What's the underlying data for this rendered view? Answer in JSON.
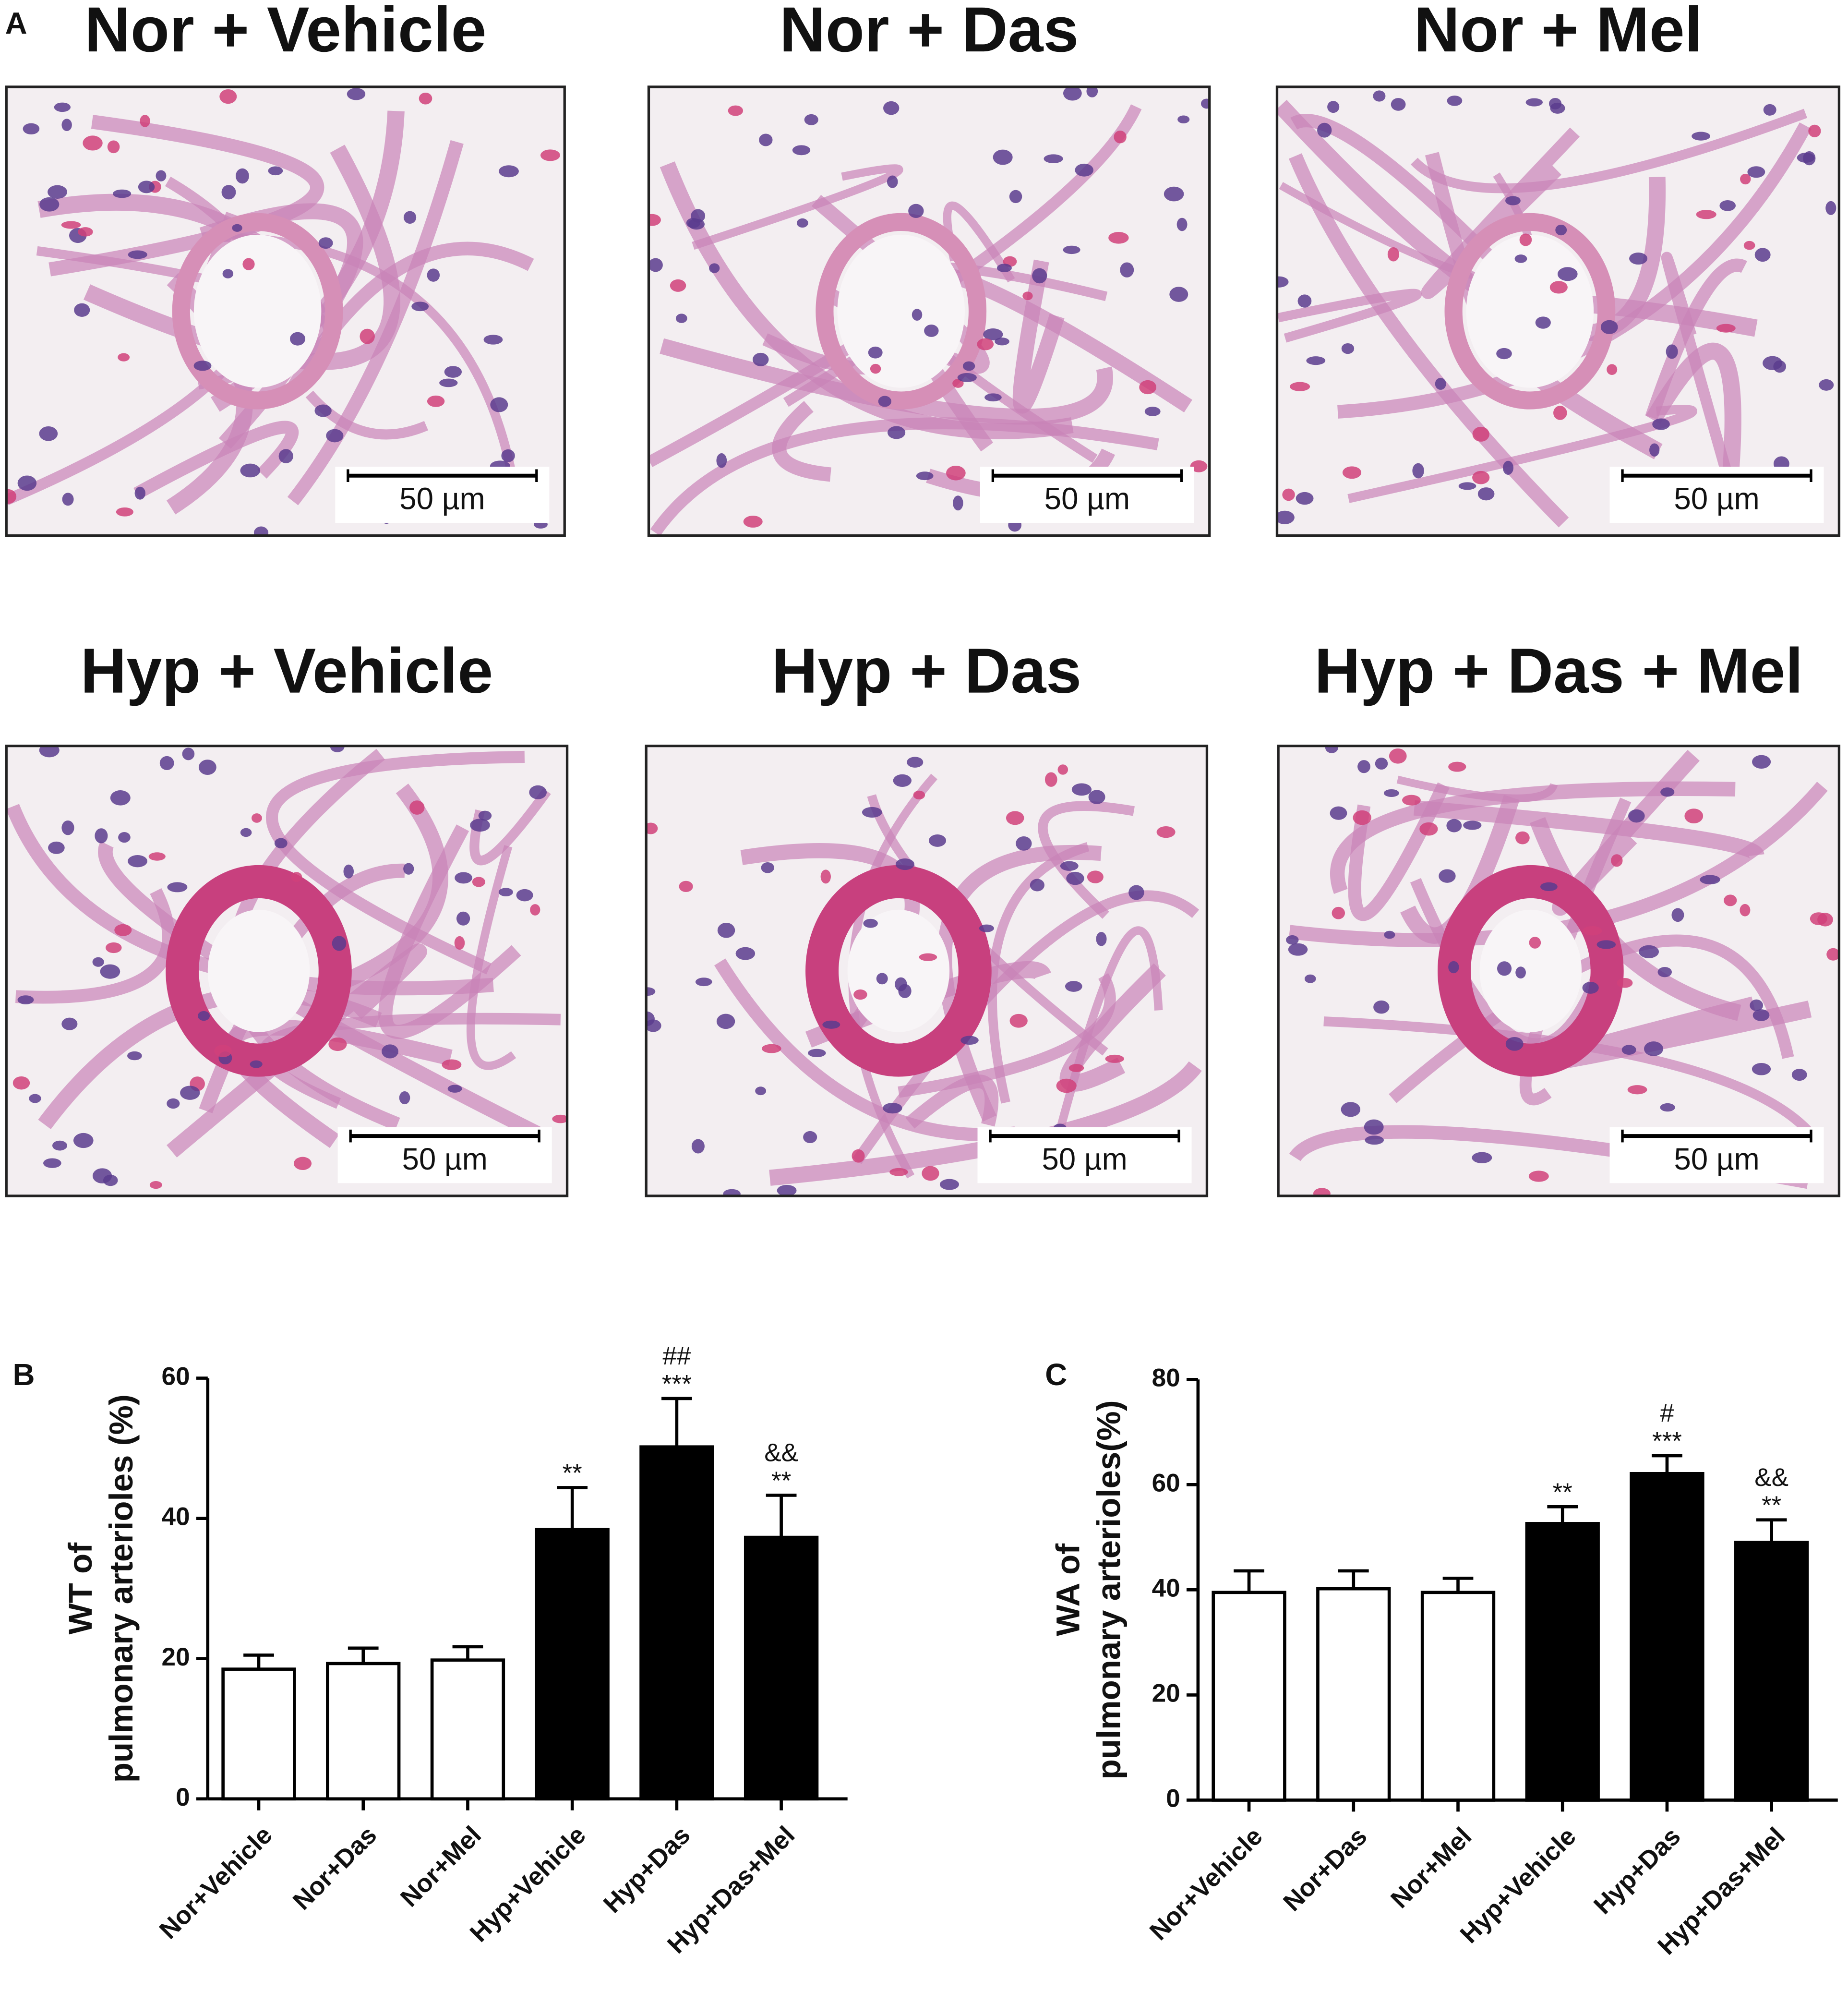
{
  "panel_a": {
    "label": "A",
    "images": [
      {
        "title": "Nor + Vehicle",
        "scale_bar": "50 µm"
      },
      {
        "title": "Nor + Das",
        "scale_bar": "50 µm"
      },
      {
        "title": "Nor + Mel",
        "scale_bar": "50 µm"
      },
      {
        "title": "Hyp + Vehicle",
        "scale_bar": "50 µm"
      },
      {
        "title": "Hyp + Das",
        "scale_bar": "50 µm"
      },
      {
        "title": "Hyp + Das + Mel",
        "scale_bar": "50 µm"
      }
    ]
  },
  "chart_data": [
    {
      "type": "bar",
      "panel_label": "B",
      "ylabel": [
        "WT of",
        "pulmonary arterioles (%)"
      ],
      "categories": [
        "Nor+Vehicle",
        "Nor+Das",
        "Nor+Mel",
        "Hyp+Vehicle",
        "Hyp+Das",
        "Hyp+Das+Mel"
      ],
      "values": [
        18.5,
        19.3,
        19.8,
        38.4,
        50.2,
        37.3
      ],
      "errors": [
        2.0,
        2.2,
        1.9,
        6.0,
        6.9,
        6.0
      ],
      "colors": [
        "#ffffff",
        "#ffffff",
        "#ffffff",
        "#000000",
        "#000000",
        "#000000"
      ],
      "annotations": [
        [],
        [],
        [],
        [
          "**"
        ],
        [
          "##",
          "***"
        ],
        [
          "&&",
          "**"
        ]
      ],
      "ylim": [
        0,
        60
      ],
      "yticks": [
        0,
        20,
        40,
        60
      ]
    },
    {
      "type": "bar",
      "panel_label": "C",
      "ylabel": [
        "WA of",
        "pulmonary arterioles(%)"
      ],
      "categories": [
        "Nor+Vehicle",
        "Nor+Das",
        "Nor+Mel",
        "Hyp+Vehicle",
        "Hyp+Das",
        "Hyp+Das+Mel"
      ],
      "values": [
        39.5,
        40.2,
        39.5,
        52.6,
        62.1,
        49.0
      ],
      "errors": [
        4.1,
        3.4,
        2.7,
        3.2,
        3.4,
        4.3
      ],
      "colors": [
        "#ffffff",
        "#ffffff",
        "#ffffff",
        "#000000",
        "#000000",
        "#000000"
      ],
      "annotations": [
        [],
        [],
        [],
        [
          "**"
        ],
        [
          "#",
          "***"
        ],
        [
          "&&",
          "**"
        ]
      ],
      "ylim": [
        0,
        80
      ],
      "yticks": [
        0,
        20,
        40,
        60,
        80
      ]
    }
  ]
}
